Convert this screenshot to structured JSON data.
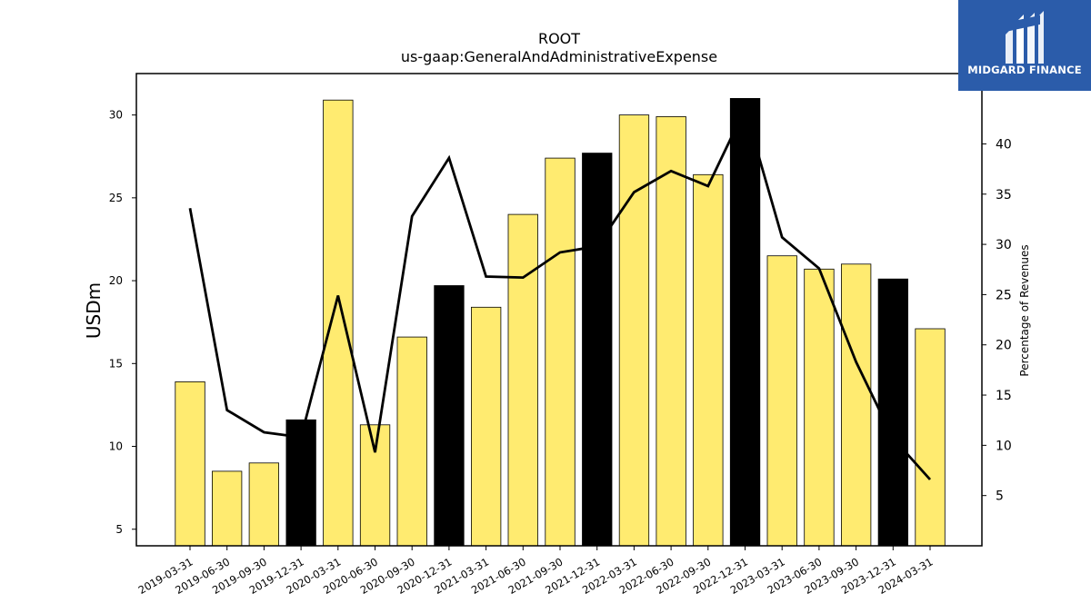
{
  "chart_data": {
    "type": "bar",
    "title": "ROOT",
    "subtitle": "us-gaap:GeneralAndAdministrativeExpense",
    "ylabel": "USDm",
    "y2label": "Percentage of Revenues",
    "ylim": [
      4,
      32.5
    ],
    "y2lim": [
      0,
      47
    ],
    "yticks": [
      5,
      10,
      15,
      20,
      25,
      30
    ],
    "y2ticks": [
      5,
      10,
      15,
      20,
      25,
      30,
      35,
      40
    ],
    "categories": [
      "2019-03-31",
      "2019-06-30",
      "2019-09-30",
      "2019-12-31",
      "2020-03-31",
      "2020-06-30",
      "2020-09-30",
      "2020-12-31",
      "2021-03-31",
      "2021-06-30",
      "2021-09-30",
      "2021-12-31",
      "2022-03-31",
      "2022-06-30",
      "2022-09-30",
      "2022-12-31",
      "2023-03-31",
      "2023-06-30",
      "2023-09-30",
      "2023-12-31",
      "2024-03-31"
    ],
    "series": [
      {
        "type": "bar",
        "axis": "left",
        "values": [
          13.9,
          8.5,
          9.0,
          11.6,
          30.9,
          11.3,
          16.6,
          19.7,
          18.4,
          24.0,
          27.4,
          27.7,
          30.0,
          29.9,
          26.4,
          31.0,
          21.5,
          20.7,
          21.0,
          20.1,
          17.1
        ],
        "colors": [
          "#ffeb70",
          "#ffeb70",
          "#ffeb70",
          "#000000",
          "#ffeb70",
          "#ffeb70",
          "#ffeb70",
          "#000000",
          "#ffeb70",
          "#ffeb70",
          "#ffeb70",
          "#000000",
          "#ffeb70",
          "#ffeb70",
          "#ffeb70",
          "#000000",
          "#ffeb70",
          "#ffeb70",
          "#ffeb70",
          "#000000",
          "#ffeb70"
        ]
      },
      {
        "type": "line",
        "axis": "right",
        "color": "#000000",
        "values": [
          33.6,
          13.5,
          11.3,
          10.8,
          24.9,
          9.3,
          32.8,
          38.6,
          26.8,
          26.7,
          29.2,
          29.8,
          35.2,
          37.3,
          35.8,
          43.5,
          30.7,
          27.6,
          18.3,
          10.7,
          6.6
        ]
      }
    ],
    "grid": false,
    "legend": "none"
  },
  "logo": {
    "text": "MIDGARD FINANCE",
    "bg_color": "#2b5caa"
  }
}
